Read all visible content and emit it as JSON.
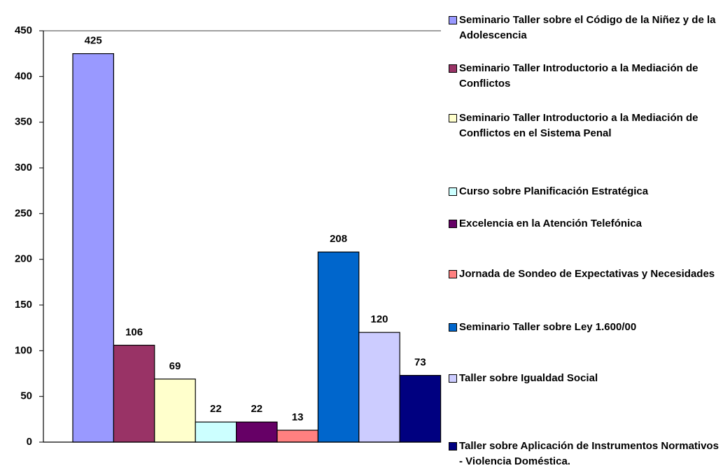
{
  "chart_data": {
    "type": "bar",
    "categories": [
      null
    ],
    "ylim": [
      0,
      450
    ],
    "yticks": [
      0,
      50,
      100,
      150,
      200,
      250,
      300,
      350,
      400,
      450
    ],
    "legend": "right",
    "series": [
      {
        "name": "Seminario Taller sobre el Código de la Niñez y de la Adolescencia",
        "color": "#9999ff",
        "values": [
          425
        ]
      },
      {
        "name": "Seminario Taller Introductorio a la Mediación de Conflictos",
        "color": "#993366",
        "values": [
          106
        ]
      },
      {
        "name": "Seminario Taller Introductorio a la Mediación de Conflictos en el Sistema Penal",
        "color": "#ffffcc",
        "values": [
          69
        ]
      },
      {
        "name": "Curso sobre Planificación Estratégica",
        "color": "#ccffff",
        "values": [
          22
        ]
      },
      {
        "name": "Excelencia en la Atención Telefónica",
        "color": "#660066",
        "values": [
          22
        ]
      },
      {
        "name": "Jornada de Sondeo de Expectativas y Necesidades",
        "color": "#ff8080",
        "values": [
          13
        ]
      },
      {
        "name": "Seminario Taller sobre Ley 1.600/00",
        "color": "#0066cc",
        "values": [
          208
        ]
      },
      {
        "name": "Taller sobre Igualdad Social",
        "color": "#ccccff",
        "values": [
          120
        ]
      },
      {
        "name": "Taller sobre Aplicación de Instrumentos Normativos - Violencia Doméstica.",
        "color": "#000080",
        "values": [
          73
        ]
      }
    ]
  }
}
